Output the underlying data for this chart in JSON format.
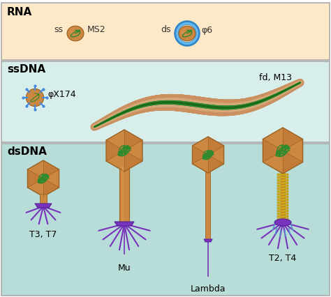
{
  "panel_rna_bg": "#fde8c8",
  "panel_ssdna_bg": "#d8eeea",
  "panel_dsdna_bg": "#b8ddd8",
  "label_rna": "RNA",
  "label_ssdna": "ssDNA",
  "label_dsdna": "dsDNA",
  "rna_ss_label": "ss",
  "rna_ms2_label": "MS2",
  "rna_ds_label": "ds",
  "rna_phi6_label": "φ6",
  "ssdna_phiX_label": "φX174",
  "ssdna_fd_label": "fd, M13",
  "dsdna_labels": [
    "T3, T7",
    "Mu",
    "Lambda",
    "T2, T4"
  ],
  "capsid_color": "#cc8840",
  "capsid_edge": "#996020",
  "capsid_face_color": "#c07830",
  "dna_color": "#2d8a2d",
  "tail_color": "#cc8840",
  "tail_edge": "#996020",
  "leg_color": "#7733bb",
  "baseplate_color": "#7733bb",
  "baseplate_edge": "#552299",
  "sheath_color": "#d4aa20",
  "sheath_edge": "#aa8800",
  "filament_outer": "#cc9060",
  "filament_inner": "#2d8a2d",
  "rna_envelope_color": "#66bbee",
  "rna_envelope_edge": "#3388cc",
  "rna_shell_color": "#cc8840",
  "spike_color": "#4488dd",
  "tailpin_color": "#5599cc"
}
